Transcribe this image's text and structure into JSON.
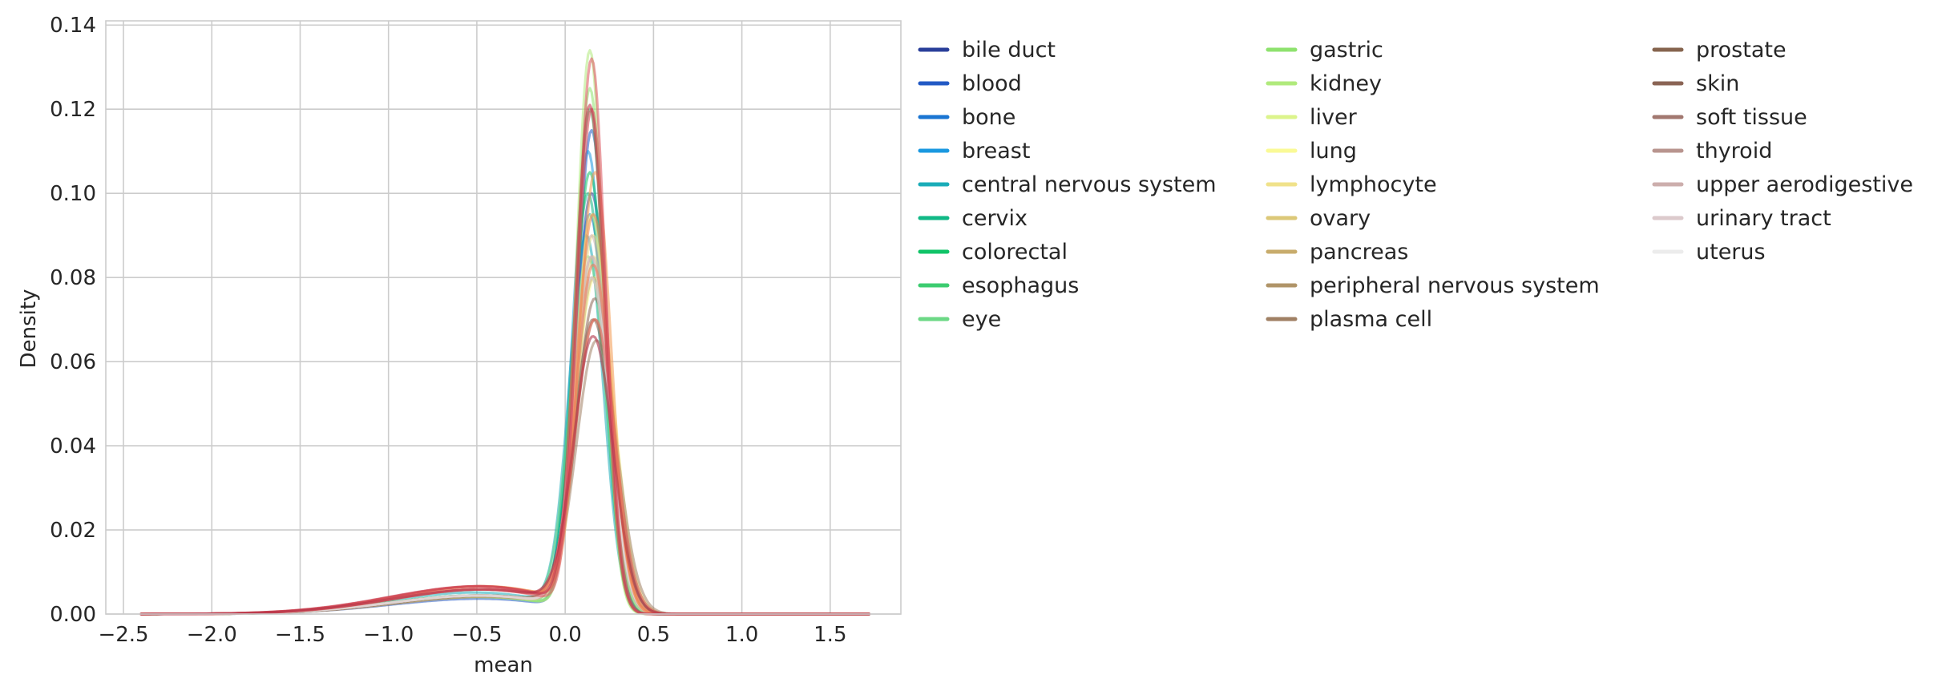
{
  "chart_data": {
    "type": "line",
    "subtype": "kde-density",
    "title": "",
    "xlabel": "mean",
    "ylabel": "Density",
    "xlim": [
      -2.6,
      1.9
    ],
    "ylim": [
      0,
      0.141
    ],
    "x_ticks": [
      -2.5,
      -2.0,
      -1.5,
      -1.0,
      -0.5,
      0.0,
      0.5,
      1.0,
      1.5
    ],
    "x_tick_labels": [
      "−2.5",
      "−2.0",
      "−1.5",
      "−1.0",
      "−0.5",
      "0.0",
      "0.5",
      "1.0",
      "1.5"
    ],
    "y_ticks": [
      0,
      0.02,
      0.04,
      0.06,
      0.08,
      0.1,
      0.12,
      0.14
    ],
    "y_tick_labels": [
      "0.00",
      "0.02",
      "0.04",
      "0.06",
      "0.08",
      "0.10",
      "0.12",
      "0.14"
    ],
    "grid": true,
    "legend_position": "outside-right",
    "legend_columns": 3,
    "series": [
      {
        "name": "bile duct",
        "color": "#2a3f9a",
        "peak_x": 0.15,
        "peak_y": 0.1,
        "width": 0.095,
        "tail_weight": 0.3
      },
      {
        "name": "blood",
        "color": "#2259c4",
        "peak_x": 0.15,
        "peak_y": 0.115,
        "width": 0.085,
        "tail_weight": 0.25
      },
      {
        "name": "bone",
        "color": "#1a75d2",
        "peak_x": 0.14,
        "peak_y": 0.095,
        "width": 0.095,
        "tail_weight": 0.3
      },
      {
        "name": "breast",
        "color": "#1a98e0",
        "peak_x": 0.13,
        "peak_y": 0.11,
        "width": 0.088,
        "tail_weight": 0.28
      },
      {
        "name": "central nervous system",
        "color": "#1aacb8",
        "peak_x": 0.12,
        "peak_y": 0.09,
        "width": 0.095,
        "tail_weight": 0.35
      },
      {
        "name": "cervix",
        "color": "#10b886",
        "peak_x": 0.13,
        "peak_y": 0.1,
        "width": 0.09,
        "tail_weight": 0.3
      },
      {
        "name": "colorectal",
        "color": "#10c468",
        "peak_x": 0.14,
        "peak_y": 0.105,
        "width": 0.09,
        "tail_weight": 0.3
      },
      {
        "name": "esophagus",
        "color": "#3ccc70",
        "peak_x": 0.14,
        "peak_y": 0.12,
        "width": 0.082,
        "tail_weight": 0.28
      },
      {
        "name": "eye",
        "color": "#6cd886",
        "peak_x": 0.13,
        "peak_y": 0.085,
        "width": 0.1,
        "tail_weight": 0.3
      },
      {
        "name": "gastric",
        "color": "#8ee26e",
        "peak_x": 0.14,
        "peak_y": 0.125,
        "width": 0.08,
        "tail_weight": 0.28
      },
      {
        "name": "kidney",
        "color": "#b0ea7c",
        "peak_x": 0.14,
        "peak_y": 0.134,
        "width": 0.078,
        "tail_weight": 0.28
      },
      {
        "name": "liver",
        "color": "#dcf48c",
        "peak_x": 0.15,
        "peak_y": 0.095,
        "width": 0.092,
        "tail_weight": 0.3
      },
      {
        "name": "lung",
        "color": "#fafa96",
        "peak_x": 0.17,
        "peak_y": 0.08,
        "width": 0.11,
        "tail_weight": 0.3
      },
      {
        "name": "lymphocyte",
        "color": "#f0e28a",
        "peak_x": 0.16,
        "peak_y": 0.09,
        "width": 0.1,
        "tail_weight": 0.28
      },
      {
        "name": "ovary",
        "color": "#dcc878",
        "peak_x": 0.16,
        "peak_y": 0.085,
        "width": 0.1,
        "tail_weight": 0.3
      },
      {
        "name": "pancreas",
        "color": "#c8ac6c",
        "peak_x": 0.16,
        "peak_y": 0.08,
        "width": 0.1,
        "tail_weight": 0.3
      },
      {
        "name": "peripheral nervous system",
        "color": "#b09468",
        "peak_x": 0.17,
        "peak_y": 0.07,
        "width": 0.11,
        "tail_weight": 0.3
      },
      {
        "name": "plasma cell",
        "color": "#a08064",
        "peak_x": 0.18,
        "peak_y": 0.065,
        "width": 0.115,
        "tail_weight": 0.28
      },
      {
        "name": "prostate",
        "color": "#86644e",
        "peak_x": 0.16,
        "peak_y": 0.07,
        "width": 0.11,
        "tail_weight": 0.3
      },
      {
        "name": "skin",
        "color": "#8a6454",
        "peak_x": 0.17,
        "peak_y": 0.075,
        "width": 0.105,
        "tail_weight": 0.3
      },
      {
        "name": "soft tissue",
        "color": "#a27870",
        "peak_x": 0.15,
        "peak_y": 0.08,
        "width": 0.1,
        "tail_weight": 0.3
      },
      {
        "name": "thyroid",
        "color": "#b8948e",
        "peak_x": 0.15,
        "peak_y": 0.085,
        "width": 0.098,
        "tail_weight": 0.3
      },
      {
        "name": "upper aerodigestive",
        "color": "#ccaeac",
        "peak_x": 0.15,
        "peak_y": 0.09,
        "width": 0.096,
        "tail_weight": 0.3
      },
      {
        "name": "urinary tract",
        "color": "#dccacc",
        "peak_x": 0.15,
        "peak_y": 0.085,
        "width": 0.098,
        "tail_weight": 0.3
      },
      {
        "name": "uterus",
        "color": "#ececec",
        "peak_x": 0.15,
        "peak_y": 0.08,
        "width": 0.1,
        "tail_weight": 0.3
      }
    ],
    "overlay_curves": [
      {
        "color": "#f4a05c",
        "peak_x": 0.17,
        "peak_y": 0.105,
        "width": 0.09,
        "tail_weight": 0.45
      },
      {
        "color": "#f08a50",
        "peak_x": 0.16,
        "peak_y": 0.095,
        "width": 0.095,
        "tail_weight": 0.45
      },
      {
        "color": "#ee7a58",
        "peak_x": 0.16,
        "peak_y": 0.083,
        "width": 0.1,
        "tail_weight": 0.4
      },
      {
        "color": "#e96a60",
        "peak_x": 0.17,
        "peak_y": 0.07,
        "width": 0.11,
        "tail_weight": 0.4
      },
      {
        "color": "#e0606a",
        "peak_x": 0.15,
        "peak_y": 0.132,
        "width": 0.078,
        "tail_weight": 0.4
      },
      {
        "color": "#d84c5c",
        "peak_x": 0.15,
        "peak_y": 0.12,
        "width": 0.082,
        "tail_weight": 0.45
      },
      {
        "color": "#c83a50",
        "peak_x": 0.14,
        "peak_y": 0.121,
        "width": 0.082,
        "tail_weight": 0.45
      },
      {
        "color": "#b03448",
        "peak_x": 0.16,
        "peak_y": 0.066,
        "width": 0.11,
        "tail_weight": 0.4
      }
    ]
  }
}
